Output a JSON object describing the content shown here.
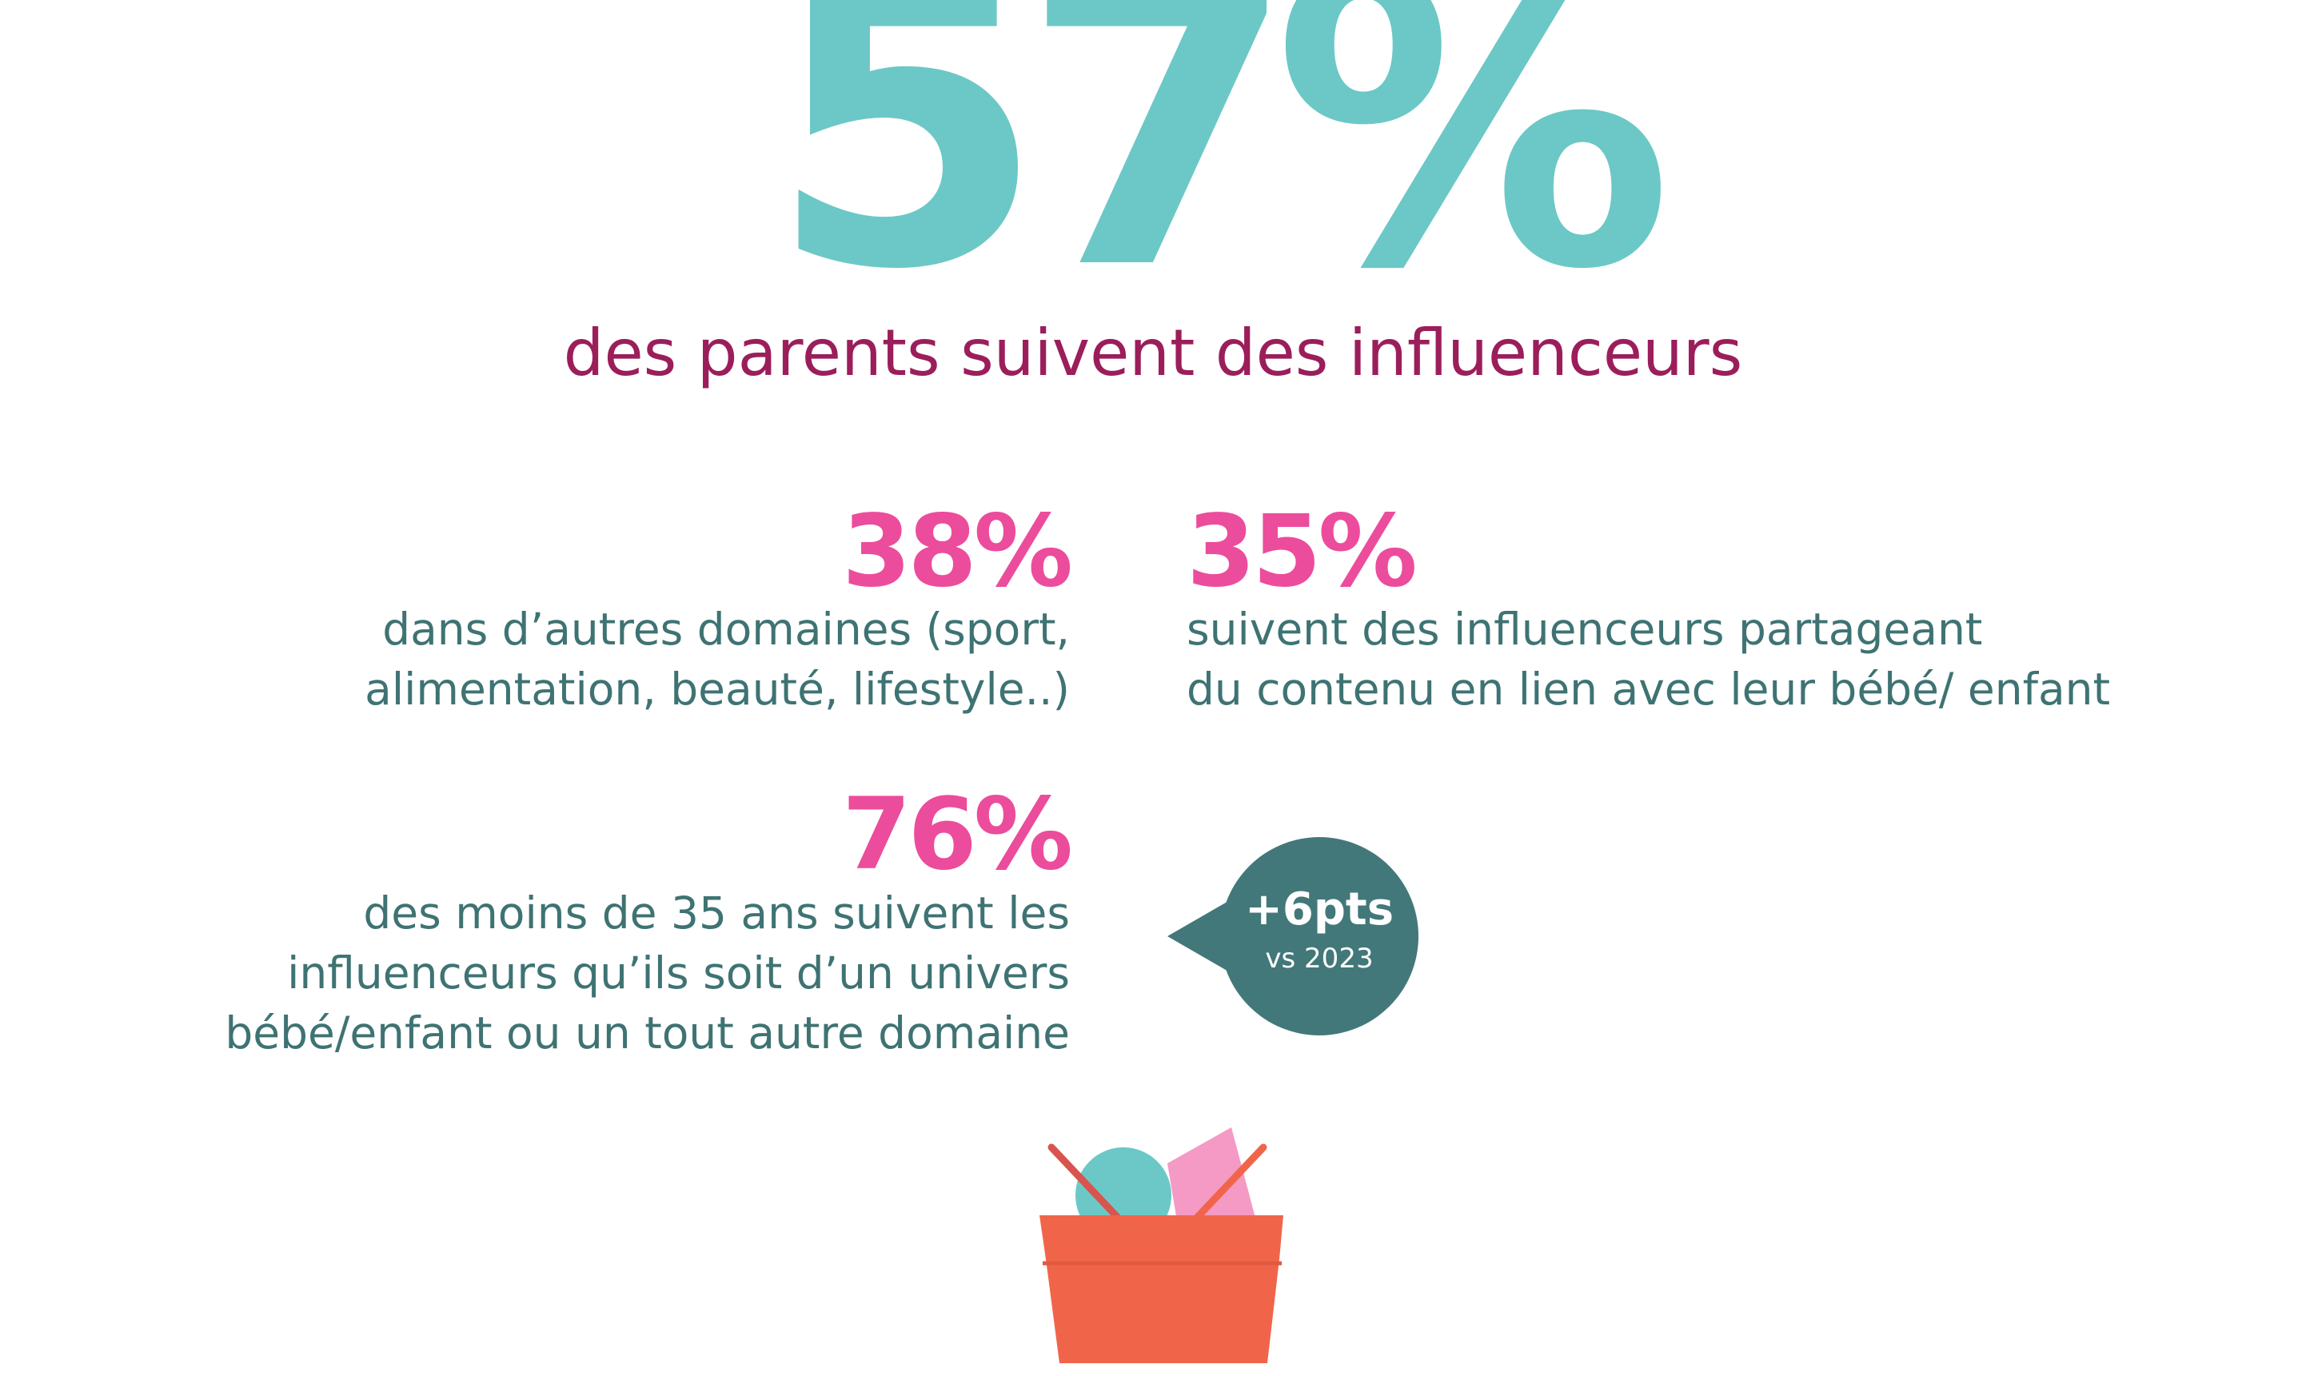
{
  "hero": {
    "value": "57%",
    "caption": "des parents suivent des influenceurs"
  },
  "stats": [
    {
      "value": "38%",
      "lines": [
        "dans d’autres domaines (sport,",
        "alimentation, beauté, lifestyle..)"
      ]
    },
    {
      "value": "35%",
      "lines": [
        "suivent des influenceurs partageant",
        "du contenu en lien avec leur bébé/ enfant"
      ]
    },
    {
      "value": "76%",
      "lines": [
        "des moins de 35 ans suivent les",
        "influenceurs qu’ils soit d’un univers",
        "bébé/enfant ou un tout autre domaine"
      ]
    }
  ],
  "callout": {
    "value": "+6pts",
    "sub": "vs 2023"
  },
  "colors": {
    "hero": "#6cc8c6",
    "caption": "#9b1e5b",
    "stat_value": "#ec4c9c",
    "stat_text": "#3f7373",
    "bubble": "#43787a",
    "basket": "#f0654a",
    "ball": "#6cc8c6",
    "card": "#f49ac4"
  },
  "icons": {
    "callout": "speech-bubble-icon",
    "illustration": "shopping-basket-icon"
  }
}
